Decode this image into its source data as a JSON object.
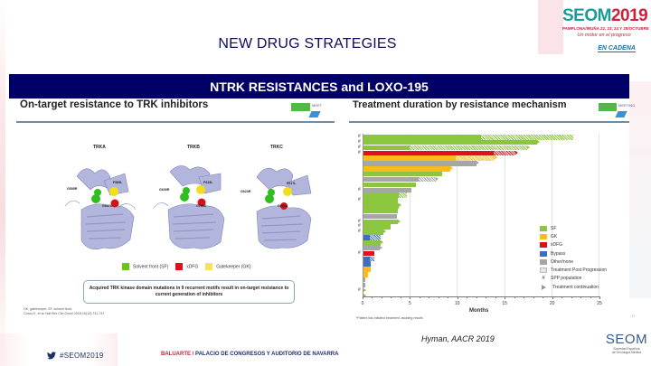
{
  "slide": {
    "title": "NEW DRUG STRATEGIES",
    "banner": "NTRK RESISTANCES and LOXO-195",
    "page_number": "17"
  },
  "header_logo": {
    "brand_part1": "SEOM",
    "brand_part2": "2019",
    "dates": "PAMPLONA/IRUÑA 22, 23, 24 Y 25/OCTUBRE",
    "tagline1": "Un motor en el progreso",
    "tagline2": "EN CADENA",
    "colors": {
      "teal": "#1a9c98",
      "red": "#d31f3b"
    }
  },
  "left_panel": {
    "heading": "On-target resistance to TRK inhibitors",
    "meeting_logo": "MEET",
    "structures": [
      {
        "name": "TRKA",
        "solvent_front": "G595R",
        "gatekeeper": "F589L",
        "xdfg": "G667C"
      },
      {
        "name": "TRKB",
        "solvent_front": "G639R",
        "gatekeeper": "F633L",
        "xdfg": "G709C"
      },
      {
        "name": "TRKC",
        "solvent_front": "G623R",
        "gatekeeper": "F617L",
        "xdfg": "G696A"
      }
    ],
    "legend": [
      {
        "label": "Solvent front (SF)",
        "color": "#6cc417"
      },
      {
        "label": "xDFG",
        "color": "#e3101c"
      },
      {
        "label": "Gatekeeper (GK)",
        "color": "#f7e25a"
      }
    ],
    "callout": "Acquired TRK kinase domain mutations in 9 recurrent motifs result in on-target resistance to current generation of inhibitors",
    "references": [
      "GK, gatekeeper; SF, solvent front.",
      "Cocco E, et al. Nat Rev Clin Oncol 2018;15(12):731-747"
    ]
  },
  "right_panel": {
    "heading": "Treatment duration by resistance mechanism",
    "meeting_logo": "MEETING",
    "footnote": "*Patient has initiated treatment, awaiting results",
    "legend": [
      {
        "key": "sf",
        "label": "SF",
        "color": "#8cc63f"
      },
      {
        "key": "gk",
        "label": "GK",
        "color": "#fbbc1a"
      },
      {
        "key": "xdfg",
        "label": "xDFG",
        "color": "#e3101c"
      },
      {
        "key": "bypass",
        "label": "Bypass",
        "color": "#3e6fbf"
      },
      {
        "key": "other",
        "label": "Other/none",
        "color": "#a6a6a6"
      },
      {
        "key": "post",
        "label": "Treatment Post Progression",
        "icon": "hatch"
      },
      {
        "key": "spp",
        "label": "SPP population",
        "icon": "hash"
      },
      {
        "key": "cont",
        "label": "Treatment continuation",
        "icon": "arrow"
      }
    ]
  },
  "chart_data": {
    "type": "bar",
    "orientation": "horizontal",
    "title": "Treatment duration by resistance mechanism",
    "xlabel": "Months",
    "ylabel": "",
    "xlim": [
      0,
      25
    ],
    "xticks": [
      0,
      5,
      10,
      15,
      20,
      25
    ],
    "grid": true,
    "legend_position": "lower right",
    "series_colors": {
      "SF": "#8cc63f",
      "GK": "#fbbc1a",
      "xDFG": "#e3101c",
      "Bypass": "#3e6fbf",
      "Other/none": "#a6a6a6"
    },
    "bars": [
      {
        "mechanism": "SF",
        "on_treatment": 12.5,
        "post_progression": 9.7,
        "total": 22.2,
        "spp": true,
        "continuing": false
      },
      {
        "mechanism": "SF",
        "on_treatment": 18.4,
        "post_progression": 0,
        "total": 18.4,
        "spp": true,
        "continuing": true
      },
      {
        "mechanism": "SF",
        "on_treatment": 5.0,
        "post_progression": 12.4,
        "total": 17.4,
        "spp": true,
        "continuing": true
      },
      {
        "mechanism": "xDFG",
        "on_treatment": 13.8,
        "post_progression": 2.3,
        "total": 16.1,
        "spp": true,
        "continuing": true
      },
      {
        "mechanism": "GK",
        "on_treatment": 9.8,
        "post_progression": 4.1,
        "total": 13.9,
        "spp": false,
        "continuing": true
      },
      {
        "mechanism": "Other/none",
        "on_treatment": 12.0,
        "post_progression": 0,
        "total": 12.0,
        "spp": false,
        "continuing": true
      },
      {
        "mechanism": "GK",
        "on_treatment": 9.3,
        "post_progression": 0,
        "total": 9.3,
        "spp": false,
        "continuing": true
      },
      {
        "mechanism": "SF",
        "on_treatment": 8.4,
        "post_progression": 0,
        "total": 8.4,
        "spp": false,
        "continuing": false
      },
      {
        "mechanism": "Other/none",
        "on_treatment": 5.9,
        "post_progression": 1.8,
        "total": 7.7,
        "spp": false,
        "continuing": true
      },
      {
        "mechanism": "SF",
        "on_treatment": 5.6,
        "post_progression": 0,
        "total": 5.6,
        "spp": false,
        "continuing": false
      },
      {
        "mechanism": "Other/none",
        "on_treatment": 5.2,
        "post_progression": 0,
        "total": 5.2,
        "spp": true,
        "continuing": false
      },
      {
        "mechanism": "SF",
        "on_treatment": 3.8,
        "post_progression": 0.9,
        "total": 4.7,
        "spp": false,
        "continuing": false
      },
      {
        "mechanism": "SF",
        "on_treatment": 3.7,
        "post_progression": 0,
        "total": 3.7,
        "spp": true,
        "continuing": false
      },
      {
        "mechanism": "SF",
        "on_treatment": 3.8,
        "post_progression": 0,
        "total": 3.8,
        "spp": false,
        "continuing": true
      },
      {
        "mechanism": "SF",
        "on_treatment": 3.7,
        "post_progression": 0,
        "total": 3.7,
        "spp": false,
        "continuing": false
      },
      {
        "mechanism": "Other/none",
        "on_treatment": 3.6,
        "post_progression": 0,
        "total": 3.6,
        "spp": false,
        "continuing": false
      },
      {
        "mechanism": "SF",
        "on_treatment": 3.7,
        "post_progression": 0,
        "total": 3.7,
        "spp": true,
        "continuing": true
      },
      {
        "mechanism": "SF",
        "on_treatment": 3.0,
        "post_progression": 0,
        "total": 3.0,
        "spp": true,
        "continuing": false
      },
      {
        "mechanism": "SF",
        "on_treatment": 2.2,
        "post_progression": 0,
        "total": 2.2,
        "spp": true,
        "continuing": true
      },
      {
        "mechanism": "Bypass",
        "on_treatment": 0.8,
        "post_progression": 1.1,
        "total": 1.9,
        "spp": false,
        "continuing": false
      },
      {
        "mechanism": "SF",
        "on_treatment": 1.9,
        "post_progression": 0,
        "total": 1.9,
        "spp": false,
        "continuing": true
      },
      {
        "mechanism": "Other/none",
        "on_treatment": 1.8,
        "post_progression": 0,
        "total": 1.8,
        "spp": false,
        "continuing": true
      },
      {
        "mechanism": "xDFG",
        "on_treatment": 1.2,
        "post_progression": 0,
        "total": 1.2,
        "spp": true,
        "continuing": false
      },
      {
        "mechanism": "Bypass",
        "on_treatment": 0.8,
        "post_progression": 0.4,
        "total": 1.2,
        "spp": false,
        "continuing": false
      },
      {
        "mechanism": "Bypass",
        "on_treatment": 0.9,
        "post_progression": 0,
        "total": 0.9,
        "spp": false,
        "continuing": false
      },
      {
        "mechanism": "GK",
        "on_treatment": 0.9,
        "post_progression": 0,
        "total": 0.9,
        "spp": false,
        "continuing": false
      },
      {
        "mechanism": "GK",
        "on_treatment": 0.6,
        "post_progression": 0,
        "total": 0.6,
        "spp": false,
        "continuing": false
      },
      {
        "mechanism": "Other/none",
        "on_treatment": 0.3,
        "post_progression": 0,
        "total": 0.3,
        "spp": false,
        "continuing": false
      },
      {
        "mechanism": "Other/none",
        "on_treatment": 0.3,
        "post_progression": 0,
        "total": 0.3,
        "spp": false,
        "continuing": false
      },
      {
        "mechanism": "SF",
        "on_treatment": 0.1,
        "post_progression": 0,
        "total": 0.1,
        "spp": true,
        "continuing": true,
        "note": "*"
      },
      {
        "mechanism": "SF",
        "on_treatment": 0.05,
        "post_progression": 0,
        "total": 0.05,
        "spp": false,
        "continuing": true
      }
    ]
  },
  "footer": {
    "citation": "Hyman, AACR 2019",
    "hashtag": "#SEOM2019",
    "venue_part1": "BALUARTE",
    "venue_sep": " / ",
    "venue_part2": "PALACIO DE CONGRESOS Y AUDITORIO DE NAVARRA",
    "seom_logo": "SEOM",
    "seom_subtitle1": "Sociedad Española",
    "seom_subtitle2": "de Oncología Médica"
  }
}
